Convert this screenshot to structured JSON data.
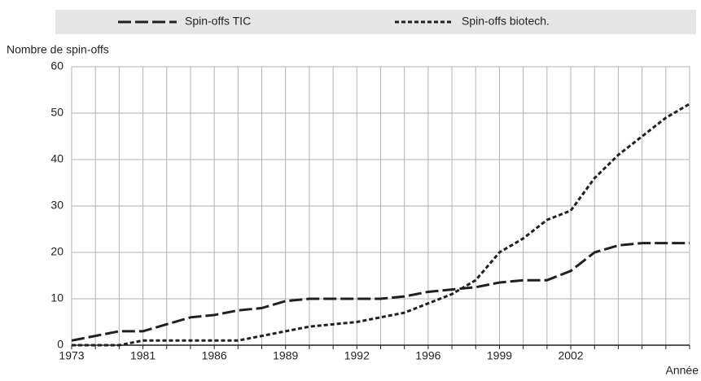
{
  "chart_data": {
    "type": "line",
    "y_label": "Nombre de spin-offs",
    "x_label": "Année",
    "categories": [
      "1973",
      null,
      null,
      "1981",
      null,
      null,
      "1986",
      null,
      null,
      "1989",
      null,
      null,
      "1992",
      null,
      null,
      "1996",
      null,
      null,
      "1999",
      null,
      null,
      "2002",
      null,
      null,
      null,
      null,
      null
    ],
    "series": [
      {
        "name": "Spin-offs TIC",
        "color": "#231f20",
        "dash": "long",
        "values": [
          1,
          2,
          3,
          3,
          4.5,
          6,
          6.5,
          7.5,
          8,
          9.5,
          10,
          10,
          10,
          10,
          10.5,
          11.5,
          12,
          12.5,
          13.5,
          14,
          14,
          16,
          20,
          21.5,
          22,
          22,
          22
        ]
      },
      {
        "name": "Spin-offs biotech.",
        "color": "#231f20",
        "dash": "short",
        "values": [
          0,
          0,
          0,
          1,
          1,
          1,
          1,
          1,
          2,
          3,
          4,
          4.5,
          5,
          6,
          7,
          9,
          11,
          14,
          20,
          23,
          27,
          29,
          36,
          41,
          45,
          49,
          52
        ]
      }
    ],
    "ylim": [
      0,
      60
    ],
    "yticks": [
      0,
      10,
      20,
      30,
      40,
      50,
      60
    ],
    "grid": true
  }
}
